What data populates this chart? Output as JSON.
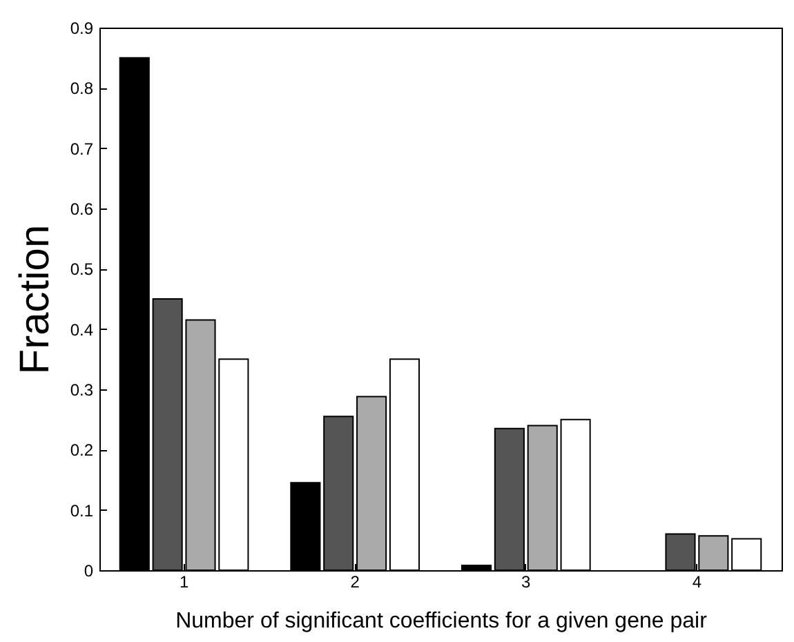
{
  "chart_data": {
    "type": "bar",
    "xlabel": "Number of significant coefficients for a given gene pair",
    "ylabel": "Fraction",
    "categories": [
      "1",
      "2",
      "3",
      "4"
    ],
    "series": [
      {
        "color": "#000000",
        "values": [
          0.85,
          0.145,
          0.008,
          null
        ]
      },
      {
        "color": "#555555",
        "values": [
          0.45,
          0.255,
          0.235,
          0.06
        ]
      },
      {
        "color": "#aaaaaa",
        "values": [
          0.415,
          0.288,
          0.24,
          0.057
        ]
      },
      {
        "color": "#ffffff",
        "values": [
          0.35,
          0.35,
          0.25,
          0.052
        ]
      }
    ],
    "ylim": [
      0,
      0.9
    ],
    "yticks": [
      0,
      0.1,
      0.2,
      0.3,
      0.4,
      0.5,
      0.6,
      0.7,
      0.8,
      0.9
    ],
    "grid": false,
    "legend": false
  }
}
